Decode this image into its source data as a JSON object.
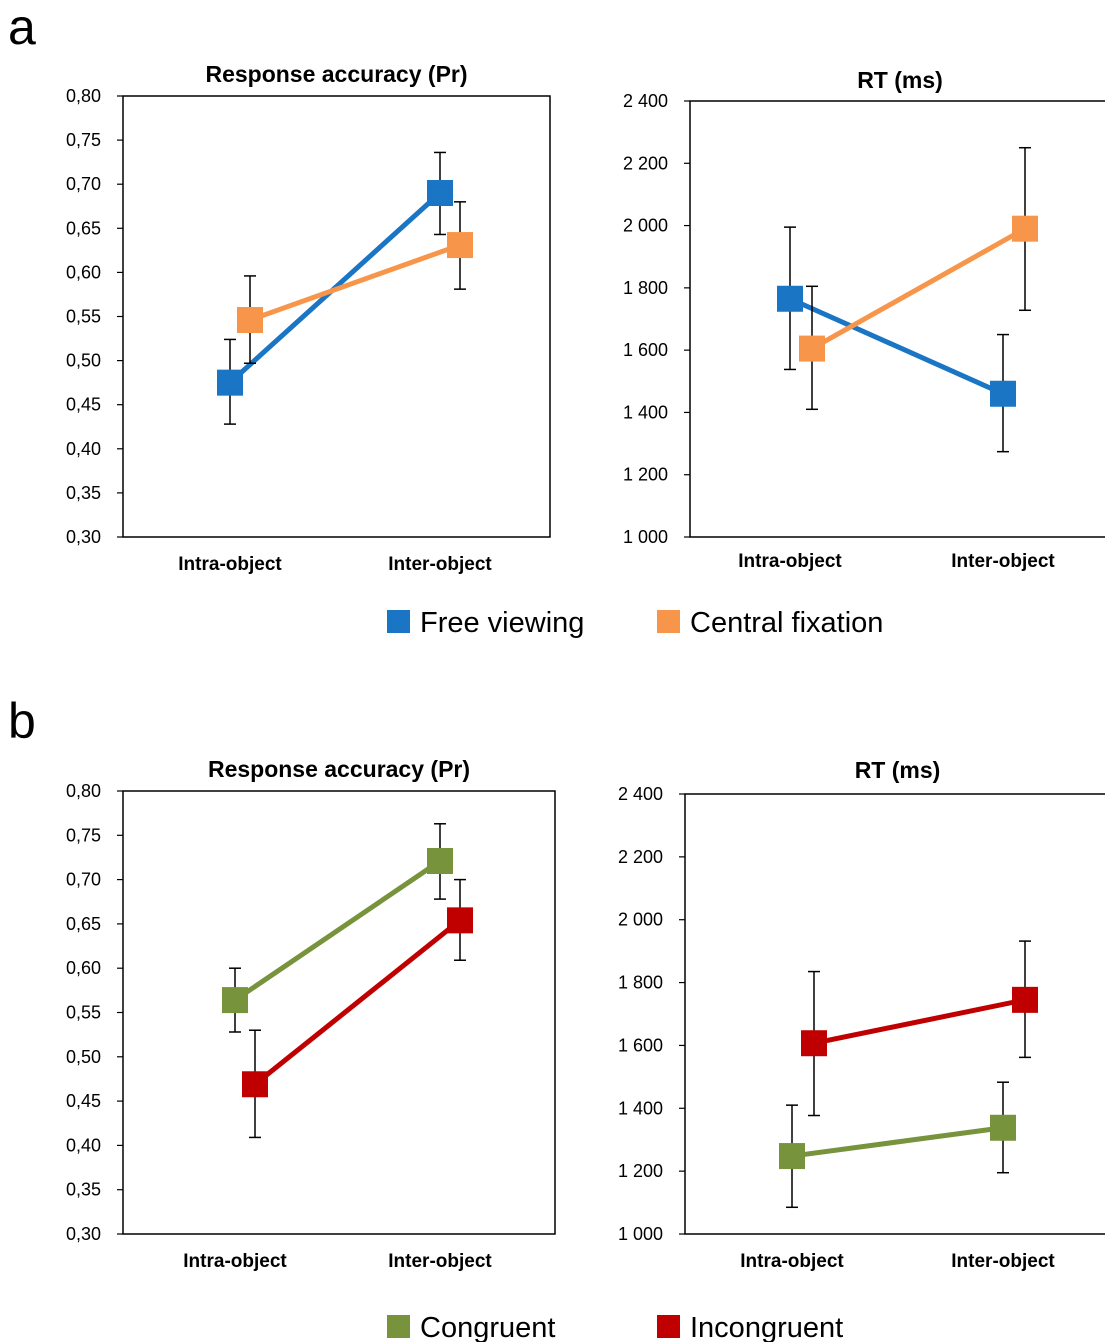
{
  "panels": [
    {
      "label": "a",
      "legend": [
        {
          "name": "Free viewing",
          "color": "#1a75c4"
        },
        {
          "name": "Central fixation",
          "color": "#f7964a"
        }
      ]
    },
    {
      "label": "b",
      "legend": [
        {
          "name": "Congruent",
          "color": "#77933c"
        },
        {
          "name": "Incongruent",
          "color": "#c00000"
        }
      ]
    }
  ],
  "chart_data": [
    {
      "type": "line",
      "panel": "a",
      "title": "Response accuracy (Pr)",
      "categories": [
        "Intra-object",
        "Inter-object"
      ],
      "ylim": [
        0.3,
        0.8
      ],
      "yticks": [
        "0,30",
        "0,35",
        "0,40",
        "0,45",
        "0,50",
        "0,55",
        "0,60",
        "0,65",
        "0,70",
        "0,75",
        "0,80"
      ],
      "xlabel": "",
      "ylabel": "",
      "series": [
        {
          "name": "Free viewing",
          "color": "#1a75c4",
          "values": [
            0.475,
            0.69
          ],
          "err_low": [
            0.428,
            0.643
          ],
          "err_high": [
            0.524,
            0.736
          ]
        },
        {
          "name": "Central fixation",
          "color": "#f7964a",
          "values": [
            0.546,
            0.631
          ],
          "err_low": [
            0.497,
            0.581
          ],
          "err_high": [
            0.596,
            0.68
          ]
        }
      ]
    },
    {
      "type": "line",
      "panel": "a",
      "title": "RT (ms)",
      "categories": [
        "Intra-object",
        "Inter-object"
      ],
      "ylim": [
        1000,
        2400
      ],
      "yticks": [
        "1 000",
        "1 200",
        "1 400",
        "1 600",
        "1 800",
        "2 000",
        "2 200",
        "2 400"
      ],
      "xlabel": "",
      "ylabel": "",
      "series": [
        {
          "name": "Free viewing",
          "color": "#1a75c4",
          "values": [
            1765,
            1460
          ],
          "err_low": [
            1538,
            1274
          ],
          "err_high": [
            1995,
            1650
          ]
        },
        {
          "name": "Central fixation",
          "color": "#f7964a",
          "values": [
            1605,
            1990
          ],
          "err_low": [
            1410,
            1728
          ],
          "err_high": [
            1805,
            2250
          ]
        }
      ]
    },
    {
      "type": "line",
      "panel": "b",
      "title": "Response accuracy (Pr)",
      "categories": [
        "Intra-object",
        "Inter-object"
      ],
      "ylim": [
        0.3,
        0.8
      ],
      "yticks": [
        "0,30",
        "0,35",
        "0,40",
        "0,45",
        "0,50",
        "0,55",
        "0,60",
        "0,65",
        "0,70",
        "0,75",
        "0,80"
      ],
      "xlabel": "",
      "ylabel": "",
      "series": [
        {
          "name": "Congruent",
          "color": "#77933c",
          "values": [
            0.564,
            0.721
          ],
          "err_low": [
            0.528,
            0.678
          ],
          "err_high": [
            0.6,
            0.763
          ]
        },
        {
          "name": "Incongruent",
          "color": "#c00000",
          "values": [
            0.469,
            0.654
          ],
          "err_low": [
            0.409,
            0.609
          ],
          "err_high": [
            0.53,
            0.7
          ]
        }
      ]
    },
    {
      "type": "line",
      "panel": "b",
      "title": "RT (ms)",
      "categories": [
        "Intra-object",
        "Inter-object"
      ],
      "ylim": [
        1000,
        2400
      ],
      "yticks": [
        "1 000",
        "1 200",
        "1 400",
        "1 600",
        "1 800",
        "2 000",
        "2 200",
        "2 400"
      ],
      "xlabel": "",
      "ylabel": "",
      "series": [
        {
          "name": "Congruent",
          "color": "#77933c",
          "values": [
            1248,
            1338
          ],
          "err_low": [
            1085,
            1195
          ],
          "err_high": [
            1410,
            1483
          ]
        },
        {
          "name": "Incongruent",
          "color": "#c00000",
          "values": [
            1607,
            1745
          ],
          "err_low": [
            1377,
            1562
          ],
          "err_high": [
            1835,
            1932
          ]
        }
      ]
    }
  ]
}
